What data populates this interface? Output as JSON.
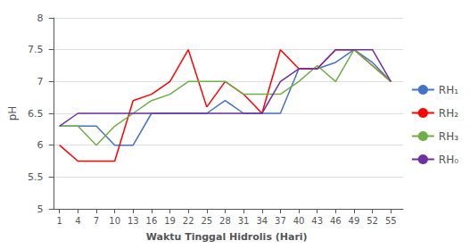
{
  "chart_data": {
    "type": "line",
    "xlabel": "Waktu Tinggal Hidrolis (Hari)",
    "ylabel": "pH",
    "x": [
      1,
      4,
      7,
      10,
      13,
      16,
      19,
      22,
      25,
      28,
      31,
      34,
      37,
      40,
      43,
      46,
      49,
      52,
      55
    ],
    "series": [
      {
        "name": "RH₁",
        "color": "#4472C4",
        "values": [
          6.3,
          6.3,
          6.3,
          6.0,
          6.0,
          6.5,
          6.5,
          6.5,
          6.5,
          6.7,
          6.5,
          6.5,
          6.5,
          7.2,
          7.2,
          7.3,
          7.5,
          7.3,
          7.0
        ]
      },
      {
        "name": "RH₂",
        "color": "#FF0000",
        "values": [
          6.0,
          5.75,
          5.75,
          5.75,
          6.7,
          6.8,
          7.0,
          7.5,
          6.6,
          7.0,
          6.8,
          6.5,
          7.5,
          7.2,
          7.2,
          7.5,
          7.5,
          7.25,
          7.0
        ]
      },
      {
        "name": "RH₃",
        "color": "#70AD47",
        "values": [
          6.3,
          6.3,
          6.0,
          6.3,
          6.5,
          6.7,
          6.8,
          7.0,
          7.0,
          7.0,
          6.8,
          6.8,
          6.8,
          7.0,
          7.25,
          7.0,
          7.5,
          7.25,
          7.0
        ]
      },
      {
        "name": "RH₀",
        "color": "#7030A0",
        "values": [
          6.3,
          6.5,
          6.5,
          6.5,
          6.5,
          6.5,
          6.5,
          6.5,
          6.5,
          6.5,
          6.5,
          6.5,
          7.0,
          7.2,
          7.2,
          7.5,
          7.5,
          7.5,
          7.0
        ]
      }
    ],
    "xlim": [
      -0.5,
      57
    ],
    "xticks": [
      1,
      4,
      7,
      10,
      13,
      16,
      19,
      22,
      25,
      28,
      31,
      34,
      37,
      40,
      43,
      46,
      49,
      52,
      55
    ],
    "ylim": [
      5,
      8
    ],
    "yticks": [
      5,
      5.5,
      6,
      6.5,
      7,
      7.5,
      8
    ],
    "grid": true,
    "legend": "right"
  }
}
